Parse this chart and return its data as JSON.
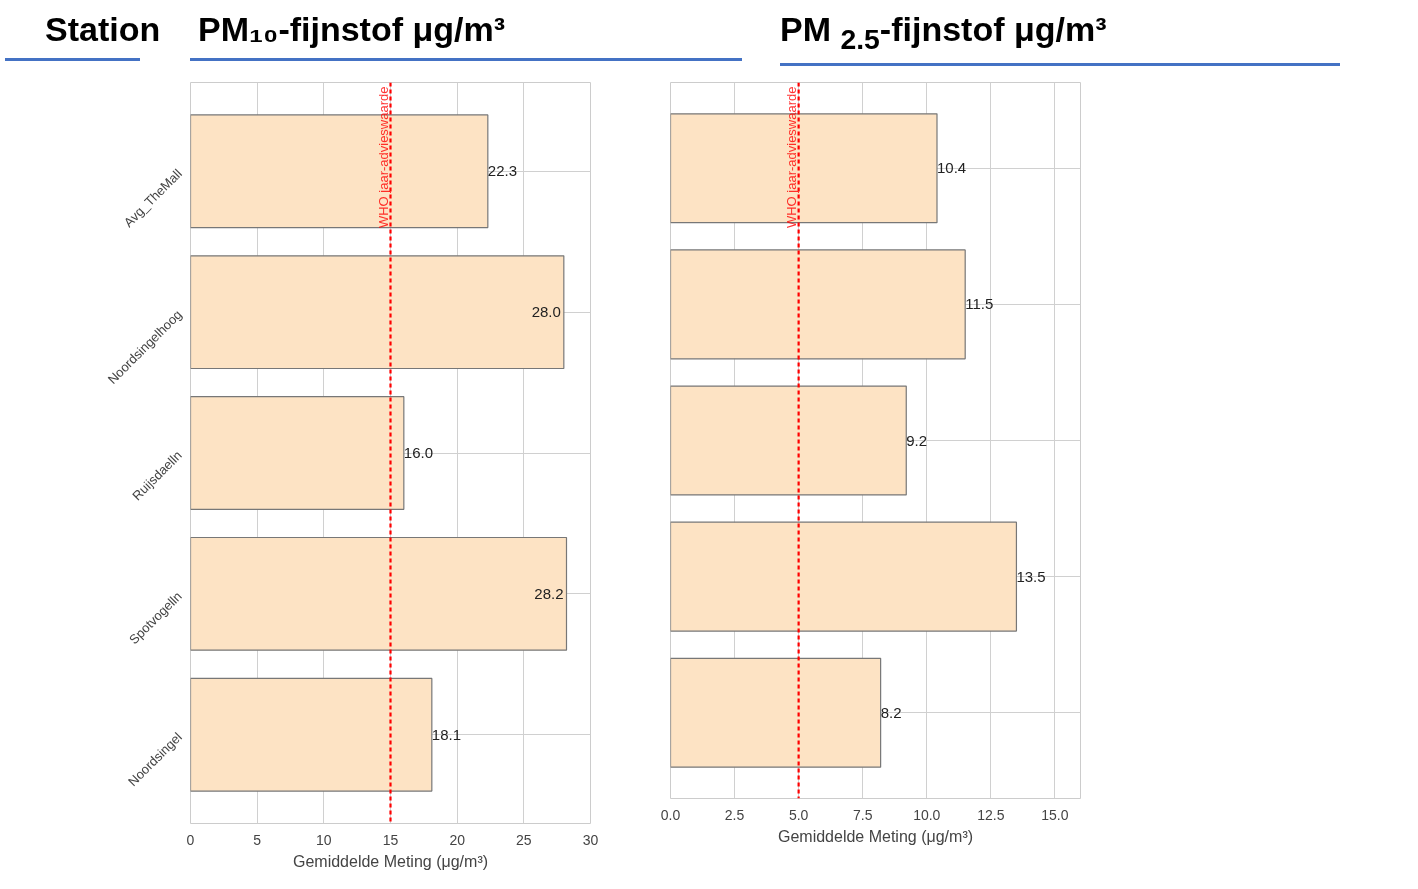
{
  "chart_data": [
    {
      "type": "bar",
      "orientation": "horizontal",
      "title": "PM₁₀-fijnstof μg/m³",
      "ylabel": "Station",
      "xlabel": "Gemiddelde Meting (μg/m³)",
      "categories": [
        "Avg_TheMall",
        "Noordsingelhoog",
        "Ruijsdaelln",
        "Spotvogelln",
        "Noordsingel"
      ],
      "values": [
        22.3,
        28.0,
        16.0,
        28.2,
        18.1
      ],
      "value_labels": [
        "22.3",
        "28.0",
        "16.0",
        "28.2",
        "18.1"
      ],
      "color": "#fde3c4",
      "xlim": [
        0,
        30
      ],
      "xticks": [
        0,
        5,
        10,
        15,
        20,
        25,
        30
      ],
      "grid": true,
      "ref_lines": [
        {
          "axis": "x",
          "value": 15,
          "label": "WHO jaar-advieswaarde",
          "color": "#ff0000",
          "line_style": "dashed"
        }
      ]
    },
    {
      "type": "bar",
      "orientation": "horizontal",
      "title": "PM $_{2.5}$-fijnstof μg/m³",
      "xlabel": "Gemiddelde Meting (μg/m³)",
      "categories": [
        null,
        null,
        null,
        null,
        null
      ],
      "values": [
        10.4,
        11.5,
        9.2,
        13.5,
        8.2
      ],
      "value_labels": [
        "10.4",
        "11.5",
        "9.2",
        "13.5",
        "8.2"
      ],
      "color": "#fde3c4",
      "xlim": [
        0,
        16
      ],
      "xticks": [
        {
          "value": 0,
          "label": "0.0"
        },
        {
          "value": 2.5,
          "label": "2.5"
        },
        {
          "value": 5,
          "label": "5.0"
        },
        {
          "value": 7.5,
          "label": "7.5"
        },
        {
          "value": 10,
          "label": "10.0"
        },
        {
          "value": 12.5,
          "label": "12.5"
        },
        {
          "value": 15,
          "label": "15.0"
        }
      ],
      "grid": true,
      "ref_lines": [
        {
          "axis": "x",
          "value": 5,
          "label": "WHO jaar-advieswaarde",
          "color": "#ff0000",
          "line_style": "dashed"
        }
      ]
    }
  ]
}
